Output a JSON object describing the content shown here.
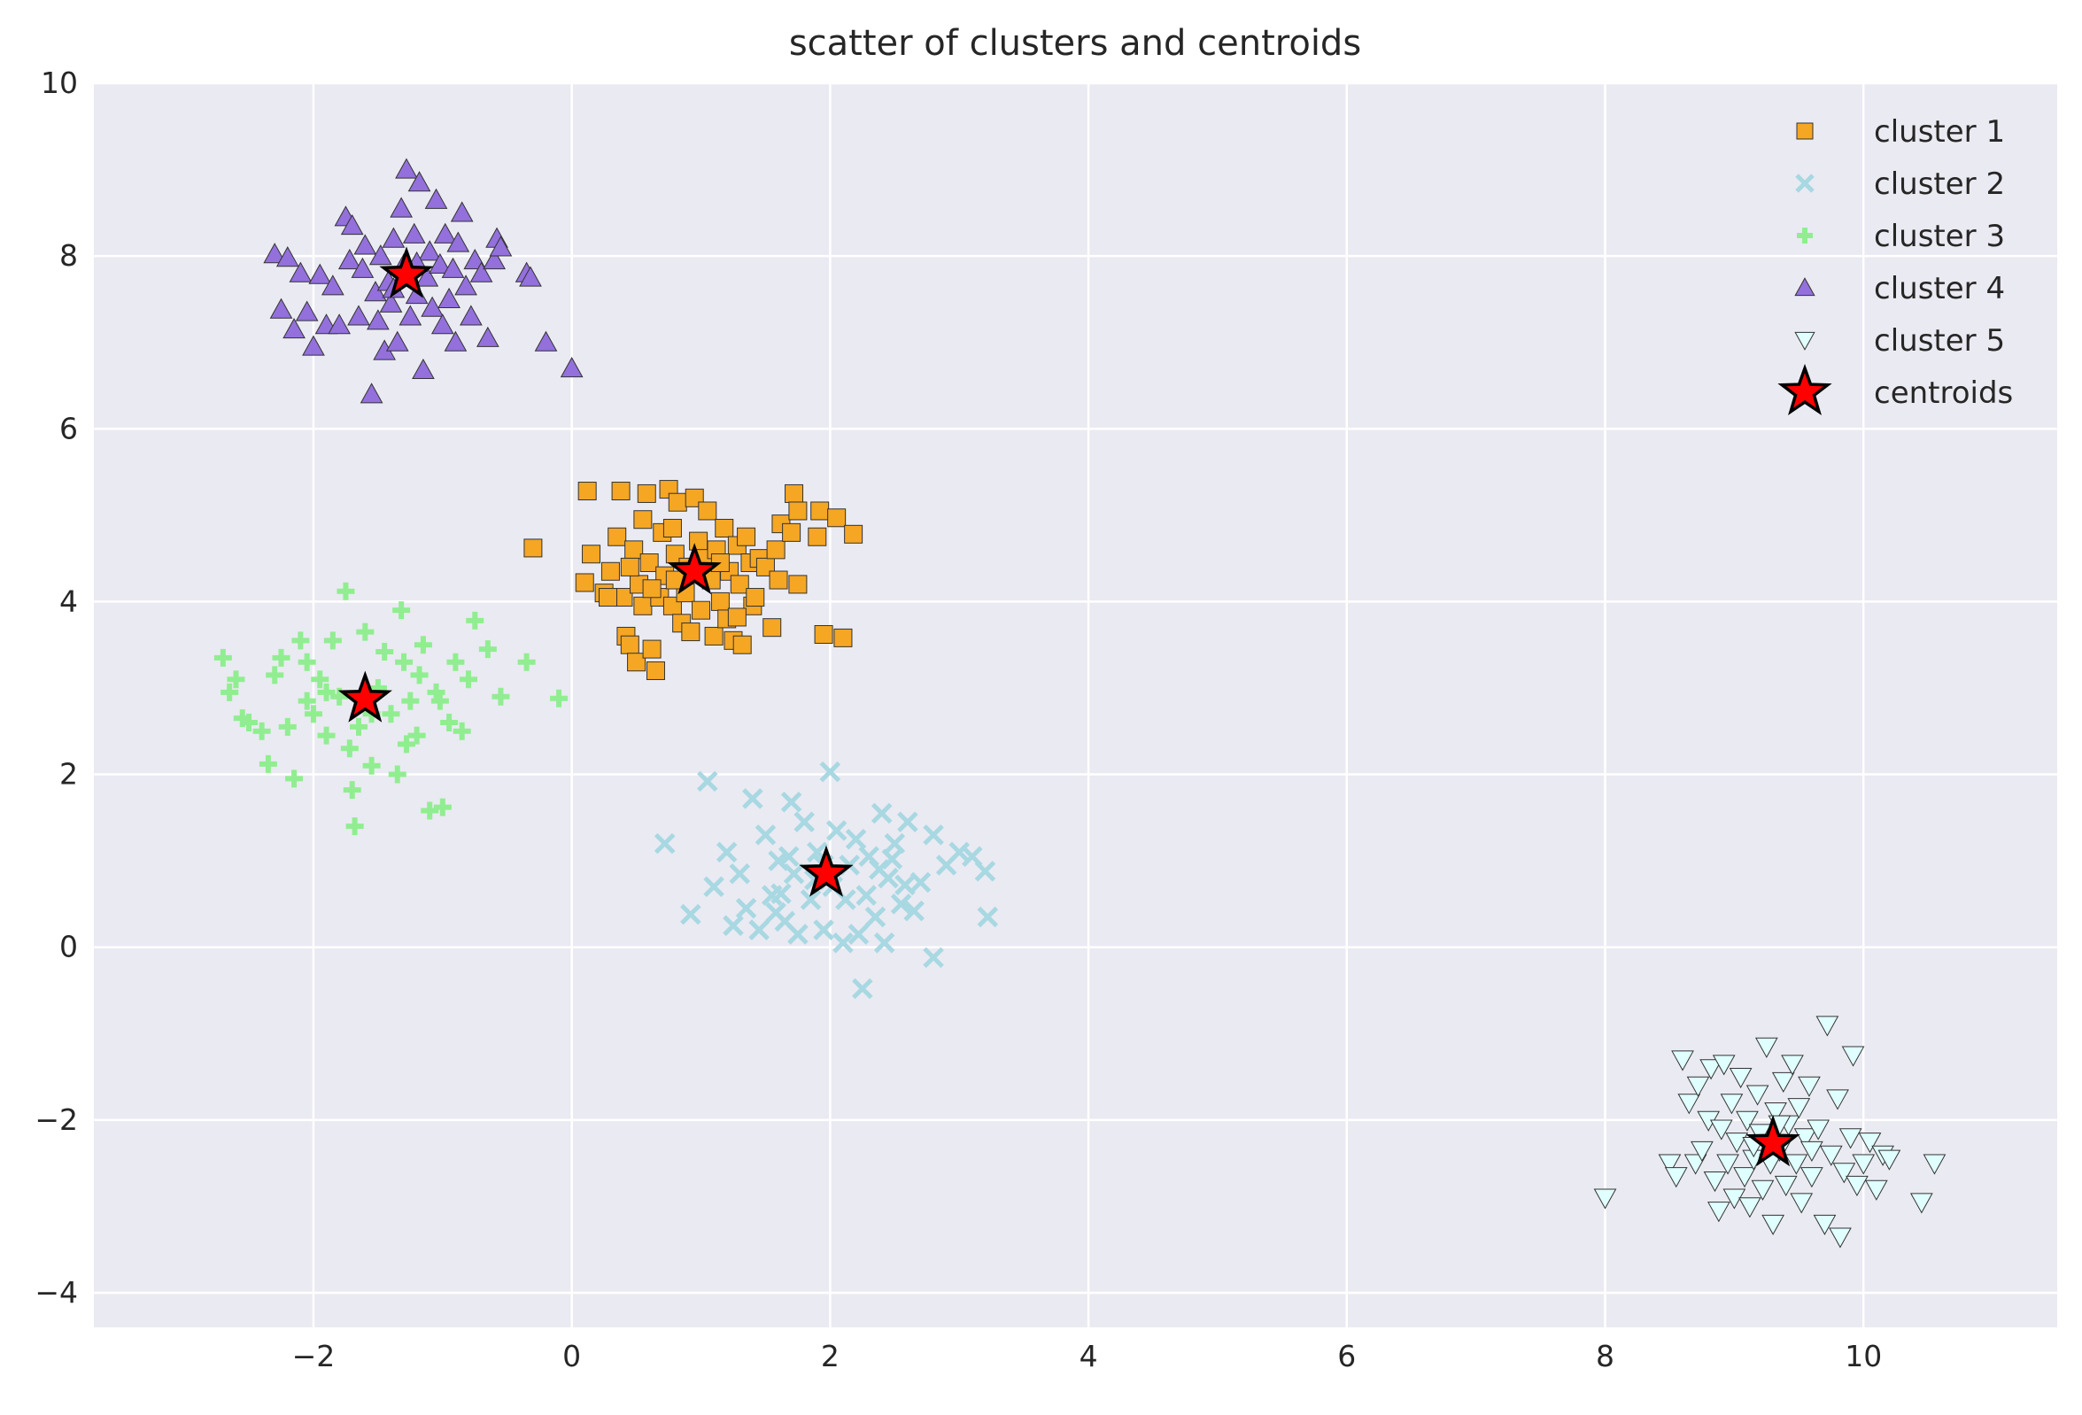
{
  "chart_data": {
    "type": "scatter",
    "title": "scatter of clusters and centroids",
    "xlabel": "",
    "ylabel": "",
    "xlim": [
      -3.7,
      11.5
    ],
    "ylim": [
      -4.4,
      10
    ],
    "xticks": [
      -2,
      0,
      2,
      4,
      6,
      8,
      10
    ],
    "yticks": [
      -4,
      -2,
      0,
      2,
      4,
      6,
      8,
      10
    ],
    "xtick_labels": [
      "−2",
      "0",
      "2",
      "4",
      "6",
      "8",
      "10"
    ],
    "ytick_labels": [
      "−4",
      "−2",
      "0",
      "2",
      "4",
      "6",
      "8",
      "10"
    ],
    "grid": true,
    "legend_position": "top-right",
    "background": "#eaeaf2",
    "series": [
      {
        "name": "cluster 1",
        "marker": "square",
        "color": "#f5a623",
        "points": [
          [
            0.12,
            5.28
          ],
          [
            0.1,
            4.22
          ],
          [
            0.15,
            4.55
          ],
          [
            0.25,
            4.1
          ],
          [
            0.3,
            4.35
          ],
          [
            0.35,
            4.75
          ],
          [
            0.38,
            5.28
          ],
          [
            0.4,
            4.05
          ],
          [
            0.42,
            3.6
          ],
          [
            0.45,
            3.5
          ],
          [
            0.48,
            4.6
          ],
          [
            0.5,
            3.3
          ],
          [
            0.52,
            4.2
          ],
          [
            0.55,
            4.95
          ],
          [
            0.55,
            3.95
          ],
          [
            0.58,
            5.25
          ],
          [
            0.6,
            4.45
          ],
          [
            0.62,
            3.45
          ],
          [
            0.65,
            3.2
          ],
          [
            0.68,
            4.05
          ],
          [
            0.7,
            4.8
          ],
          [
            0.72,
            4.3
          ],
          [
            0.75,
            5.3
          ],
          [
            0.78,
            3.95
          ],
          [
            0.8,
            4.55
          ],
          [
            0.82,
            5.15
          ],
          [
            0.85,
            3.75
          ],
          [
            0.88,
            4.1
          ],
          [
            0.9,
            4.4
          ],
          [
            0.92,
            3.65
          ],
          [
            0.95,
            5.2
          ],
          [
            0.98,
            4.7
          ],
          [
            1.0,
            3.9
          ],
          [
            1.02,
            4.5
          ],
          [
            1.05,
            5.05
          ],
          [
            1.08,
            4.25
          ],
          [
            1.1,
            3.6
          ],
          [
            1.12,
            4.6
          ],
          [
            1.15,
            4.0
          ],
          [
            1.18,
            4.85
          ],
          [
            1.2,
            3.8
          ],
          [
            1.22,
            4.35
          ],
          [
            1.25,
            3.55
          ],
          [
            1.28,
            4.65
          ],
          [
            1.3,
            4.2
          ],
          [
            1.32,
            3.5
          ],
          [
            1.35,
            4.75
          ],
          [
            1.38,
            4.45
          ],
          [
            1.4,
            3.95
          ],
          [
            1.42,
            4.05
          ],
          [
            1.45,
            4.5
          ],
          [
            1.5,
            4.4
          ],
          [
            1.55,
            3.7
          ],
          [
            1.58,
            4.6
          ],
          [
            1.6,
            4.25
          ],
          [
            1.62,
            4.9
          ],
          [
            1.7,
            4.8
          ],
          [
            1.72,
            5.25
          ],
          [
            1.75,
            4.2
          ],
          [
            1.75,
            5.05
          ],
          [
            1.9,
            4.75
          ],
          [
            1.92,
            5.05
          ],
          [
            1.95,
            3.62
          ],
          [
            2.05,
            4.97
          ],
          [
            2.1,
            3.58
          ],
          [
            2.18,
            4.78
          ],
          [
            0.28,
            4.05
          ],
          [
            0.45,
            4.4
          ],
          [
            0.62,
            4.15
          ],
          [
            0.78,
            4.85
          ],
          [
            1.15,
            4.45
          ],
          [
            1.28,
            3.82
          ],
          [
            0.8,
            4.25
          ],
          [
            -0.3,
            4.62
          ]
        ]
      },
      {
        "name": "cluster 2",
        "marker": "x",
        "color": "#a8d8e2",
        "points": [
          [
            0.72,
            1.2
          ],
          [
            0.92,
            0.38
          ],
          [
            1.05,
            1.92
          ],
          [
            1.1,
            0.7
          ],
          [
            1.2,
            1.1
          ],
          [
            1.3,
            0.85
          ],
          [
            1.35,
            0.45
          ],
          [
            1.4,
            1.72
          ],
          [
            1.45,
            0.2
          ],
          [
            1.5,
            1.3
          ],
          [
            1.55,
            0.6
          ],
          [
            1.6,
            1.0
          ],
          [
            1.65,
            0.3
          ],
          [
            1.7,
            1.68
          ],
          [
            1.72,
            0.85
          ],
          [
            1.75,
            0.15
          ],
          [
            1.8,
            1.45
          ],
          [
            1.85,
            0.55
          ],
          [
            1.9,
            1.1
          ],
          [
            1.95,
            0.2
          ],
          [
            2.0,
            2.03
          ],
          [
            2.02,
            0.7
          ],
          [
            2.05,
            1.35
          ],
          [
            2.1,
            0.05
          ],
          [
            2.15,
            0.95
          ],
          [
            2.2,
            1.25
          ],
          [
            2.25,
            -0.48
          ],
          [
            2.28,
            0.6
          ],
          [
            2.3,
            1.05
          ],
          [
            2.35,
            0.35
          ],
          [
            2.4,
            1.55
          ],
          [
            2.45,
            0.8
          ],
          [
            2.5,
            1.2
          ],
          [
            2.55,
            0.5
          ],
          [
            2.6,
            1.45
          ],
          [
            2.7,
            0.75
          ],
          [
            2.8,
            1.3
          ],
          [
            2.8,
            -0.12
          ],
          [
            2.9,
            0.95
          ],
          [
            3.0,
            1.1
          ],
          [
            3.1,
            1.05
          ],
          [
            3.2,
            0.88
          ],
          [
            3.22,
            0.35
          ],
          [
            1.25,
            0.25
          ],
          [
            1.58,
            0.4
          ],
          [
            1.88,
            0.78
          ],
          [
            2.12,
            0.55
          ],
          [
            2.38,
            0.9
          ],
          [
            2.48,
            1.02
          ],
          [
            1.68,
            1.05
          ],
          [
            2.22,
            0.15
          ],
          [
            2.42,
            0.05
          ],
          [
            2.58,
            0.72
          ],
          [
            1.62,
            0.62
          ],
          [
            1.95,
            0.95
          ],
          [
            2.65,
            0.42
          ]
        ]
      },
      {
        "name": "cluster 3",
        "marker": "plus",
        "color": "#90ee90",
        "points": [
          [
            -2.7,
            3.35
          ],
          [
            -2.65,
            2.95
          ],
          [
            -2.6,
            3.1
          ],
          [
            -2.55,
            2.65
          ],
          [
            -2.5,
            2.6
          ],
          [
            -2.4,
            2.5
          ],
          [
            -2.35,
            2.12
          ],
          [
            -2.3,
            3.15
          ],
          [
            -2.25,
            3.35
          ],
          [
            -2.2,
            2.55
          ],
          [
            -2.15,
            1.95
          ],
          [
            -2.1,
            3.55
          ],
          [
            -2.05,
            2.85
          ],
          [
            -2.0,
            2.7
          ],
          [
            -1.95,
            3.1
          ],
          [
            -1.9,
            2.45
          ],
          [
            -1.85,
            3.55
          ],
          [
            -1.8,
            2.9
          ],
          [
            -1.75,
            4.12
          ],
          [
            -1.72,
            2.3
          ],
          [
            -1.7,
            1.82
          ],
          [
            -1.68,
            1.4
          ],
          [
            -1.65,
            2.55
          ],
          [
            -1.6,
            3.65
          ],
          [
            -1.55,
            2.1
          ],
          [
            -1.5,
            3.0
          ],
          [
            -1.45,
            3.42
          ],
          [
            -1.4,
            2.7
          ],
          [
            -1.35,
            2.0
          ],
          [
            -1.3,
            3.3
          ],
          [
            -1.25,
            2.85
          ],
          [
            -1.2,
            2.45
          ],
          [
            -1.15,
            3.5
          ],
          [
            -1.1,
            1.58
          ],
          [
            -1.05,
            2.95
          ],
          [
            -1.0,
            1.62
          ],
          [
            -0.95,
            2.6
          ],
          [
            -0.9,
            3.3
          ],
          [
            -0.85,
            2.5
          ],
          [
            -0.8,
            3.1
          ],
          [
            -0.75,
            3.78
          ],
          [
            -0.65,
            3.45
          ],
          [
            -0.55,
            2.9
          ],
          [
            -0.35,
            3.3
          ],
          [
            -0.1,
            2.88
          ],
          [
            -1.32,
            3.9
          ],
          [
            -1.28,
            2.35
          ],
          [
            -1.9,
            2.95
          ],
          [
            -2.05,
            3.3
          ],
          [
            -1.55,
            2.7
          ],
          [
            -1.02,
            2.85
          ],
          [
            -1.18,
            3.15
          ]
        ]
      },
      {
        "name": "cluster 4",
        "marker": "triangle-up",
        "color": "#9370db",
        "points": [
          [
            -2.3,
            8.02
          ],
          [
            -2.25,
            7.38
          ],
          [
            -2.2,
            7.98
          ],
          [
            -2.15,
            7.15
          ],
          [
            -2.1,
            7.8
          ],
          [
            -2.05,
            7.35
          ],
          [
            -2.0,
            6.95
          ],
          [
            -1.95,
            7.78
          ],
          [
            -1.9,
            7.2
          ],
          [
            -1.85,
            7.65
          ],
          [
            -1.8,
            7.2
          ],
          [
            -1.75,
            8.45
          ],
          [
            -1.72,
            7.95
          ],
          [
            -1.7,
            8.35
          ],
          [
            -1.65,
            7.3
          ],
          [
            -1.6,
            8.12
          ],
          [
            -1.55,
            6.4
          ],
          [
            -1.52,
            7.58
          ],
          [
            -1.5,
            7.25
          ],
          [
            -1.48,
            8.0
          ],
          [
            -1.45,
            6.9
          ],
          [
            -1.42,
            7.7
          ],
          [
            -1.4,
            7.45
          ],
          [
            -1.38,
            8.2
          ],
          [
            -1.35,
            7.0
          ],
          [
            -1.32,
            8.55
          ],
          [
            -1.3,
            7.9
          ],
          [
            -1.28,
            9.0
          ],
          [
            -1.25,
            7.3
          ],
          [
            -1.22,
            8.25
          ],
          [
            -1.2,
            7.55
          ],
          [
            -1.18,
            8.85
          ],
          [
            -1.15,
            6.68
          ],
          [
            -1.12,
            7.75
          ],
          [
            -1.1,
            8.05
          ],
          [
            -1.08,
            7.4
          ],
          [
            -1.05,
            8.65
          ],
          [
            -1.02,
            7.9
          ],
          [
            -1.0,
            7.2
          ],
          [
            -0.98,
            8.25
          ],
          [
            -0.95,
            7.5
          ],
          [
            -0.92,
            7.85
          ],
          [
            -0.9,
            7.0
          ],
          [
            -0.88,
            8.15
          ],
          [
            -0.85,
            8.5
          ],
          [
            -0.82,
            7.65
          ],
          [
            -0.78,
            7.3
          ],
          [
            -0.75,
            7.95
          ],
          [
            -0.7,
            7.8
          ],
          [
            -0.65,
            7.05
          ],
          [
            -0.6,
            7.95
          ],
          [
            -0.58,
            8.2
          ],
          [
            -0.55,
            8.1
          ],
          [
            -0.35,
            7.8
          ],
          [
            -0.32,
            7.75
          ],
          [
            -0.2,
            7.0
          ],
          [
            0.0,
            6.7
          ],
          [
            -1.38,
            7.62
          ],
          [
            -1.62,
            7.85
          ],
          [
            -1.2,
            7.92
          ]
        ]
      },
      {
        "name": "cluster 5",
        "marker": "triangle-down",
        "color": "#e0ffff",
        "points": [
          [
            8.0,
            -2.9
          ],
          [
            8.5,
            -2.5
          ],
          [
            8.55,
            -2.65
          ],
          [
            8.6,
            -1.3
          ],
          [
            8.65,
            -1.8
          ],
          [
            8.7,
            -2.5
          ],
          [
            8.72,
            -1.6
          ],
          [
            8.75,
            -2.35
          ],
          [
            8.8,
            -2.0
          ],
          [
            8.82,
            -1.4
          ],
          [
            8.85,
            -2.7
          ],
          [
            8.88,
            -3.05
          ],
          [
            8.9,
            -2.1
          ],
          [
            8.92,
            -1.35
          ],
          [
            8.95,
            -2.5
          ],
          [
            8.98,
            -1.8
          ],
          [
            9.0,
            -2.9
          ],
          [
            9.02,
            -2.25
          ],
          [
            9.05,
            -1.5
          ],
          [
            9.08,
            -2.65
          ],
          [
            9.1,
            -2.0
          ],
          [
            9.12,
            -3.0
          ],
          [
            9.15,
            -2.45
          ],
          [
            9.18,
            -1.7
          ],
          [
            9.2,
            -2.15
          ],
          [
            9.22,
            -2.8
          ],
          [
            9.25,
            -1.15
          ],
          [
            9.28,
            -2.5
          ],
          [
            9.3,
            -3.2
          ],
          [
            9.32,
            -1.9
          ],
          [
            9.35,
            -2.35
          ],
          [
            9.38,
            -1.55
          ],
          [
            9.4,
            -2.75
          ],
          [
            9.42,
            -2.05
          ],
          [
            9.45,
            -1.35
          ],
          [
            9.48,
            -2.5
          ],
          [
            9.5,
            -1.85
          ],
          [
            9.52,
            -2.95
          ],
          [
            9.55,
            -2.2
          ],
          [
            9.58,
            -1.6
          ],
          [
            9.6,
            -2.65
          ],
          [
            9.65,
            -2.1
          ],
          [
            9.7,
            -3.2
          ],
          [
            9.72,
            -0.9
          ],
          [
            9.75,
            -2.4
          ],
          [
            9.8,
            -1.75
          ],
          [
            9.82,
            -3.35
          ],
          [
            9.85,
            -2.6
          ],
          [
            9.9,
            -2.2
          ],
          [
            9.92,
            -1.25
          ],
          [
            9.95,
            -2.75
          ],
          [
            10.0,
            -2.5
          ],
          [
            10.05,
            -2.25
          ],
          [
            10.1,
            -2.8
          ],
          [
            10.15,
            -2.4
          ],
          [
            10.2,
            -2.45
          ],
          [
            10.45,
            -2.95
          ],
          [
            10.55,
            -2.5
          ],
          [
            9.15,
            -2.3
          ],
          [
            9.35,
            -2.05
          ],
          [
            9.6,
            -2.35
          ]
        ]
      },
      {
        "name": "centroids",
        "marker": "star",
        "color": "#ff0000",
        "points": [
          [
            0.95,
            4.35
          ],
          [
            1.97,
            0.85
          ],
          [
            -1.6,
            2.87
          ],
          [
            -1.28,
            7.78
          ],
          [
            9.3,
            -2.27
          ]
        ]
      }
    ]
  }
}
